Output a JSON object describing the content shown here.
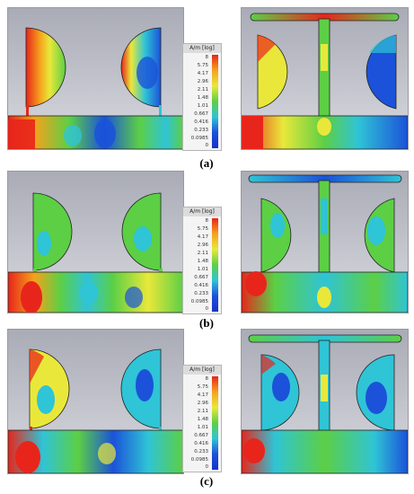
{
  "captions": [
    "(a)",
    "(b)",
    "(c)"
  ],
  "legend": {
    "title": "A/m [log]",
    "ticks_a": [
      "8",
      "5.75",
      "4.17",
      "2.96",
      "2.11",
      "1.48",
      "1.01",
      "0.667",
      "0.416",
      "0.233",
      "0.0985",
      "0"
    ],
    "ticks_b": [
      "8",
      "5.75",
      "4.17",
      "2.96",
      "2.11",
      "1.48",
      "1.01",
      "0.667",
      "0.416",
      "0.233",
      "0.0985",
      "0"
    ],
    "ticks_c": [
      "8",
      "5.75",
      "4.17",
      "2.96",
      "2.11",
      "1.48",
      "1.01",
      "0.667",
      "0.416",
      "0.233",
      "0.0985",
      "0"
    ]
  },
  "colors": {
    "background": "#c9cbd3",
    "red": "#e8251b",
    "orange": "#f5a21c",
    "yellow": "#e9e83a",
    "green": "#5ccf45",
    "cyan": "#2fc4d6",
    "blue": "#1b52d9",
    "deep_blue": "#1533c8"
  }
}
